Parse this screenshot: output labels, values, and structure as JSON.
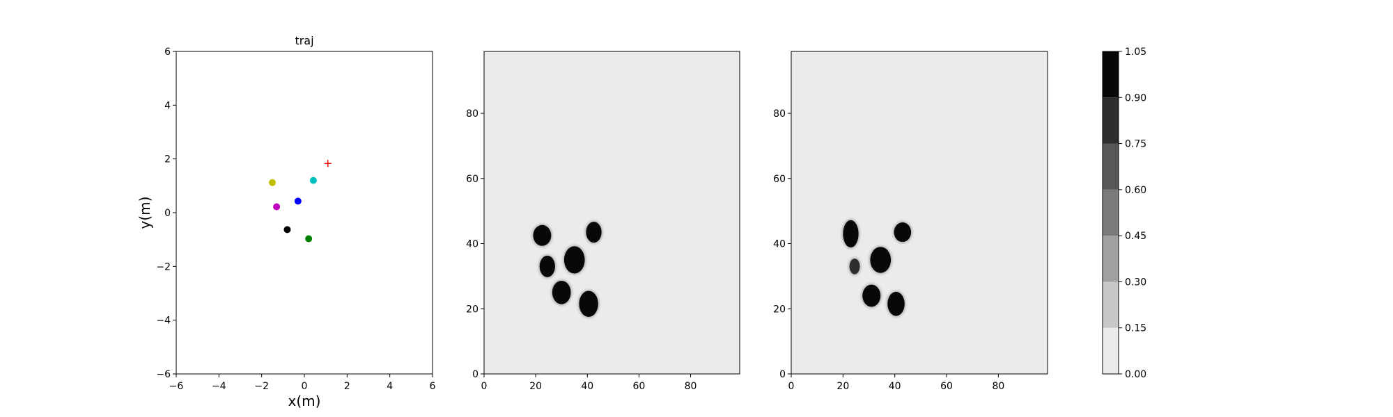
{
  "chart_data": [
    {
      "type": "scatter",
      "title": "traj",
      "xlabel": "x(m)",
      "ylabel": "y(m)",
      "xlim": [
        -6,
        6
      ],
      "ylim": [
        -6,
        6
      ],
      "xticks": [
        -6,
        -4,
        -2,
        0,
        2,
        4,
        6
      ],
      "yticks": [
        -6,
        -4,
        -2,
        0,
        2,
        4,
        6
      ],
      "grid": false,
      "points": [
        {
          "x": -1.5,
          "y": 1.12,
          "color": "#bfbf00",
          "marker": "circle"
        },
        {
          "x": 0.42,
          "y": 1.2,
          "color": "#00bfbf",
          "marker": "circle"
        },
        {
          "x": -1.3,
          "y": 0.22,
          "color": "#bf00bf",
          "marker": "circle"
        },
        {
          "x": -0.3,
          "y": 0.43,
          "color": "#0000ff",
          "marker": "circle"
        },
        {
          "x": -0.8,
          "y": -0.63,
          "color": "#000000",
          "marker": "circle"
        },
        {
          "x": 0.2,
          "y": -0.97,
          "color": "#008000",
          "marker": "circle"
        },
        {
          "x": 1.1,
          "y": 1.83,
          "color": "#ff0000",
          "marker": "plus"
        }
      ]
    },
    {
      "type": "heatmap",
      "xlim": [
        0,
        99
      ],
      "ylim": [
        0,
        99
      ],
      "xticks": [
        0,
        20,
        40,
        60,
        80
      ],
      "yticks": [
        0,
        20,
        40,
        60,
        80
      ],
      "background_value": 0.0,
      "blobs": [
        {
          "cx": 22.5,
          "cy": 42.5,
          "rx": 3.5,
          "ry": 3.2,
          "value": 1.0
        },
        {
          "cx": 42.5,
          "cy": 43.5,
          "rx": 3.0,
          "ry": 3.2,
          "value": 1.0
        },
        {
          "cx": 24.5,
          "cy": 33.0,
          "rx": 3.0,
          "ry": 3.3,
          "value": 1.0
        },
        {
          "cx": 35.0,
          "cy": 35.0,
          "rx": 4.0,
          "ry": 4.2,
          "value": 1.0
        },
        {
          "cx": 30.0,
          "cy": 25.0,
          "rx": 3.6,
          "ry": 3.6,
          "value": 1.0
        },
        {
          "cx": 40.5,
          "cy": 21.5,
          "rx": 3.7,
          "ry": 4.0,
          "value": 1.0
        }
      ]
    },
    {
      "type": "heatmap",
      "xlim": [
        0,
        99
      ],
      "ylim": [
        0,
        99
      ],
      "xticks": [
        0,
        20,
        40,
        60,
        80
      ],
      "yticks": [
        0,
        20,
        40,
        60,
        80
      ],
      "background_value": 0.0,
      "blobs": [
        {
          "cx": 23.0,
          "cy": 43.0,
          "rx": 3.0,
          "ry": 4.2,
          "value": 1.0
        },
        {
          "cx": 43.0,
          "cy": 43.5,
          "rx": 3.3,
          "ry": 3.0,
          "value": 1.0
        },
        {
          "cx": 24.5,
          "cy": 33.0,
          "rx": 2.0,
          "ry": 2.4,
          "value": 0.85
        },
        {
          "cx": 34.5,
          "cy": 35.0,
          "rx": 4.0,
          "ry": 4.0,
          "value": 1.0
        },
        {
          "cx": 31.0,
          "cy": 24.0,
          "rx": 3.5,
          "ry": 3.4,
          "value": 1.0
        },
        {
          "cx": 40.5,
          "cy": 21.5,
          "rx": 3.3,
          "ry": 3.7,
          "value": 1.0
        }
      ]
    },
    {
      "type": "colorbar",
      "levels": [
        "0.00",
        "0.15",
        "0.30",
        "0.45",
        "0.60",
        "0.75",
        "0.90",
        "1.05"
      ],
      "colors": [
        "#ebebeb",
        "#c8c8c8",
        "#a0a0a0",
        "#7b7b7b",
        "#575757",
        "#2e2e2e",
        "#080808"
      ]
    }
  ]
}
